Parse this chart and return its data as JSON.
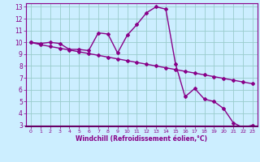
{
  "hours": [
    0,
    1,
    2,
    3,
    4,
    5,
    6,
    7,
    8,
    9,
    10,
    11,
    12,
    13,
    14,
    15,
    16,
    17,
    18,
    19,
    20,
    21,
    22,
    23
  ],
  "line1": [
    10.0,
    9.9,
    10.0,
    9.9,
    9.4,
    9.4,
    9.3,
    10.8,
    10.7,
    9.1,
    10.6,
    11.5,
    12.5,
    13.0,
    12.8,
    8.2,
    5.4,
    6.1,
    5.2,
    5.0,
    4.4,
    3.2,
    2.8,
    3.0
  ],
  "line2": [
    10.0,
    9.8,
    9.65,
    9.5,
    9.35,
    9.2,
    9.05,
    8.9,
    8.75,
    8.6,
    8.45,
    8.3,
    8.15,
    8.0,
    7.85,
    7.7,
    7.55,
    7.4,
    7.25,
    7.1,
    6.95,
    6.8,
    6.65,
    6.5
  ],
  "line_color": "#880088",
  "bg_color": "#cceeff",
  "grid_color": "#99cccc",
  "xlabel": "Windchill (Refroidissement éolien,°C)",
  "ylim": [
    3,
    13
  ],
  "xlim": [
    -0.5,
    23.5
  ],
  "yticks": [
    3,
    4,
    5,
    6,
    7,
    8,
    9,
    10,
    11,
    12,
    13
  ],
  "xticks": [
    0,
    1,
    2,
    3,
    4,
    5,
    6,
    7,
    8,
    9,
    10,
    11,
    12,
    13,
    14,
    15,
    16,
    17,
    18,
    19,
    20,
    21,
    22,
    23
  ],
  "marker": "D",
  "markersize": 2.0,
  "linewidth": 1.0
}
